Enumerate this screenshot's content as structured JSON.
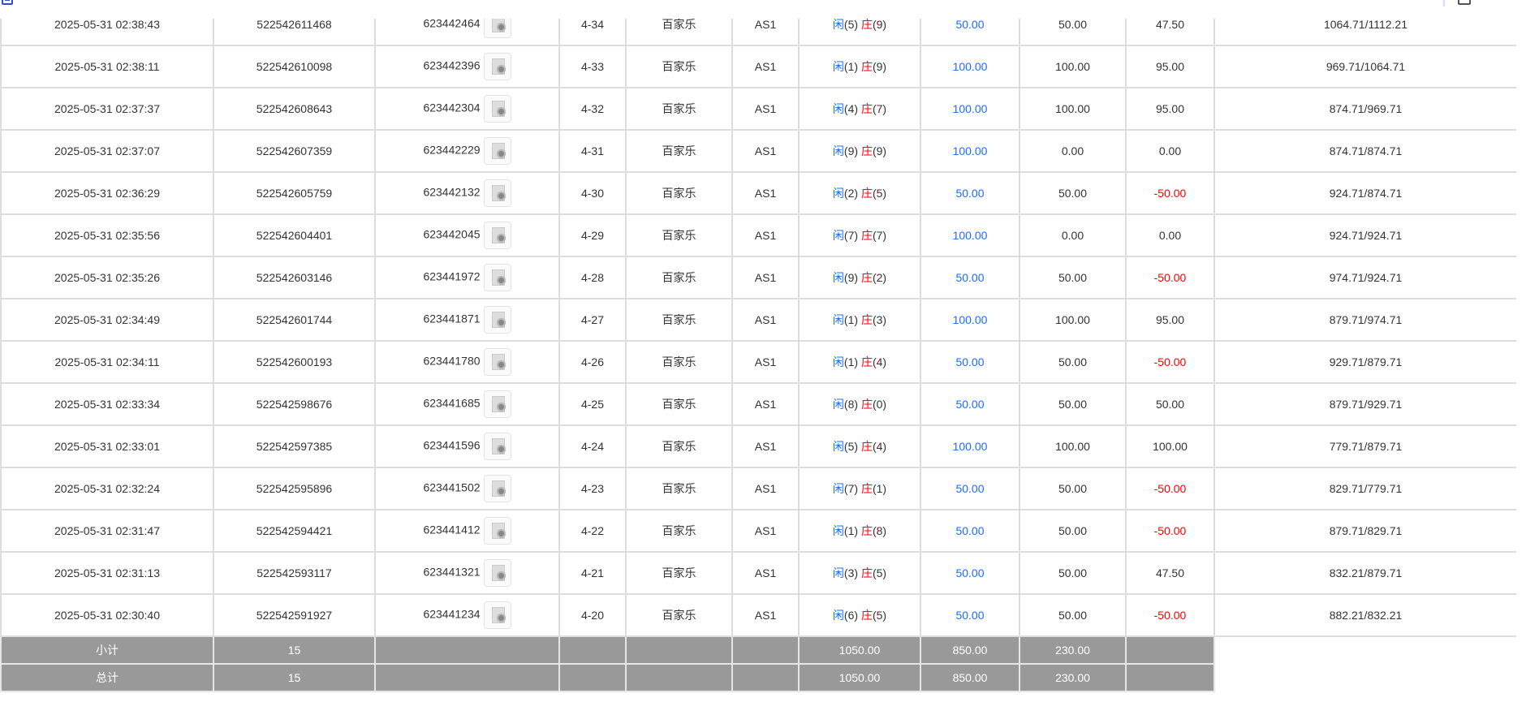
{
  "colors": {
    "player": "#1a6dff",
    "banker": "#ff0000",
    "bet": "#1a6dff",
    "negative": "#ff0000",
    "summary_bg": "#999999"
  },
  "labels": {
    "player": "闲",
    "banker": "庄"
  },
  "rows": [
    {
      "time": "2025-05-31 02:38:43",
      "order": "522542611468",
      "game_id": "623442464",
      "round": "4-34",
      "game": "百家乐",
      "table": "AS1",
      "p": "5",
      "b": "9",
      "bet": "50.00",
      "valid": "50.00",
      "win": "47.50",
      "balance": "1064.71/1112.21"
    },
    {
      "time": "2025-05-31 02:38:11",
      "order": "522542610098",
      "game_id": "623442396",
      "round": "4-33",
      "game": "百家乐",
      "table": "AS1",
      "p": "1",
      "b": "9",
      "bet": "100.00",
      "valid": "100.00",
      "win": "95.00",
      "balance": "969.71/1064.71"
    },
    {
      "time": "2025-05-31 02:37:37",
      "order": "522542608643",
      "game_id": "623442304",
      "round": "4-32",
      "game": "百家乐",
      "table": "AS1",
      "p": "4",
      "b": "7",
      "bet": "100.00",
      "valid": "100.00",
      "win": "95.00",
      "balance": "874.71/969.71"
    },
    {
      "time": "2025-05-31 02:37:07",
      "order": "522542607359",
      "game_id": "623442229",
      "round": "4-31",
      "game": "百家乐",
      "table": "AS1",
      "p": "9",
      "b": "9",
      "bet": "100.00",
      "valid": "0.00",
      "win": "0.00",
      "balance": "874.71/874.71"
    },
    {
      "time": "2025-05-31 02:36:29",
      "order": "522542605759",
      "game_id": "623442132",
      "round": "4-30",
      "game": "百家乐",
      "table": "AS1",
      "p": "2",
      "b": "5",
      "bet": "50.00",
      "valid": "50.00",
      "win": "-50.00",
      "balance": "924.71/874.71"
    },
    {
      "time": "2025-05-31 02:35:56",
      "order": "522542604401",
      "game_id": "623442045",
      "round": "4-29",
      "game": "百家乐",
      "table": "AS1",
      "p": "7",
      "b": "7",
      "bet": "100.00",
      "valid": "0.00",
      "win": "0.00",
      "balance": "924.71/924.71"
    },
    {
      "time": "2025-05-31 02:35:26",
      "order": "522542603146",
      "game_id": "623441972",
      "round": "4-28",
      "game": "百家乐",
      "table": "AS1",
      "p": "9",
      "b": "2",
      "bet": "50.00",
      "valid": "50.00",
      "win": "-50.00",
      "balance": "974.71/924.71"
    },
    {
      "time": "2025-05-31 02:34:49",
      "order": "522542601744",
      "game_id": "623441871",
      "round": "4-27",
      "game": "百家乐",
      "table": "AS1",
      "p": "1",
      "b": "3",
      "bet": "100.00",
      "valid": "100.00",
      "win": "95.00",
      "balance": "879.71/974.71"
    },
    {
      "time": "2025-05-31 02:34:11",
      "order": "522542600193",
      "game_id": "623441780",
      "round": "4-26",
      "game": "百家乐",
      "table": "AS1",
      "p": "1",
      "b": "4",
      "bet": "50.00",
      "valid": "50.00",
      "win": "-50.00",
      "balance": "929.71/879.71"
    },
    {
      "time": "2025-05-31 02:33:34",
      "order": "522542598676",
      "game_id": "623441685",
      "round": "4-25",
      "game": "百家乐",
      "table": "AS1",
      "p": "8",
      "b": "0",
      "bet": "50.00",
      "valid": "50.00",
      "win": "50.00",
      "balance": "879.71/929.71"
    },
    {
      "time": "2025-05-31 02:33:01",
      "order": "522542597385",
      "game_id": "623441596",
      "round": "4-24",
      "game": "百家乐",
      "table": "AS1",
      "p": "5",
      "b": "4",
      "bet": "100.00",
      "valid": "100.00",
      "win": "100.00",
      "balance": "779.71/879.71"
    },
    {
      "time": "2025-05-31 02:32:24",
      "order": "522542595896",
      "game_id": "623441502",
      "round": "4-23",
      "game": "百家乐",
      "table": "AS1",
      "p": "7",
      "b": "1",
      "bet": "50.00",
      "valid": "50.00",
      "win": "-50.00",
      "balance": "829.71/779.71"
    },
    {
      "time": "2025-05-31 02:31:47",
      "order": "522542594421",
      "game_id": "623441412",
      "round": "4-22",
      "game": "百家乐",
      "table": "AS1",
      "p": "1",
      "b": "8",
      "bet": "50.00",
      "valid": "50.00",
      "win": "-50.00",
      "balance": "879.71/829.71"
    },
    {
      "time": "2025-05-31 02:31:13",
      "order": "522542593117",
      "game_id": "623441321",
      "round": "4-21",
      "game": "百家乐",
      "table": "AS1",
      "p": "3",
      "b": "5",
      "bet": "50.00",
      "valid": "50.00",
      "win": "47.50",
      "balance": "832.21/879.71"
    },
    {
      "time": "2025-05-31 02:30:40",
      "order": "522542591927",
      "game_id": "623441234",
      "round": "4-20",
      "game": "百家乐",
      "table": "AS1",
      "p": "6",
      "b": "5",
      "bet": "50.00",
      "valid": "50.00",
      "win": "-50.00",
      "balance": "882.21/832.21"
    }
  ],
  "summary": [
    {
      "label": "小计",
      "count": "15",
      "bet": "1050.00",
      "valid": "850.00",
      "win": "230.00"
    },
    {
      "label": "总计",
      "count": "15",
      "bet": "1050.00",
      "valid": "850.00",
      "win": "230.00"
    }
  ]
}
